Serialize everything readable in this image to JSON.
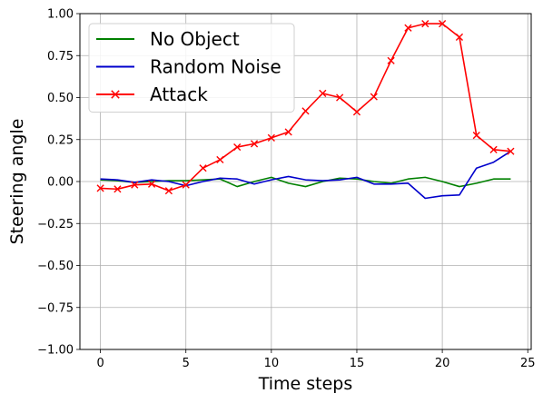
{
  "chart_data": {
    "type": "line",
    "xlabel": "Time steps",
    "ylabel": "Steering angle",
    "xlim": [
      -1.2,
      25.2
    ],
    "ylim": [
      -1.0,
      1.0
    ],
    "xticks": [
      0,
      5,
      10,
      15,
      20,
      25
    ],
    "yticks": [
      -1.0,
      -0.75,
      -0.5,
      -0.25,
      0.0,
      0.25,
      0.5,
      0.75,
      1.0
    ],
    "xtick_labels": [
      "0",
      "5",
      "10",
      "15",
      "20",
      "25"
    ],
    "ytick_labels": [
      "−1.00",
      "−0.75",
      "−0.50",
      "−0.25",
      "0.00",
      "0.25",
      "0.50",
      "0.75",
      "1.00"
    ],
    "grid": true,
    "legend_position": "top-left",
    "x": [
      0,
      1,
      2,
      3,
      4,
      5,
      6,
      7,
      8,
      9,
      10,
      11,
      12,
      13,
      14,
      15,
      16,
      17,
      18,
      19,
      20,
      21,
      22,
      23,
      24
    ],
    "series": [
      {
        "name": "No Object",
        "color": "#008000",
        "marker": "none",
        "values": [
          0.01,
          0.005,
          -0.005,
          0.0,
          0.005,
          0.005,
          0.01,
          0.015,
          -0.03,
          0.0,
          0.025,
          -0.01,
          -0.03,
          0.0,
          0.02,
          0.015,
          0.0,
          -0.01,
          0.015,
          0.025,
          0.0,
          -0.03,
          -0.01,
          0.015,
          0.015
        ]
      },
      {
        "name": "Random Noise",
        "color": "#0000cc",
        "marker": "none",
        "values": [
          0.015,
          0.01,
          -0.005,
          0.01,
          0.0,
          -0.025,
          0.0,
          0.02,
          0.015,
          -0.015,
          0.01,
          0.03,
          0.01,
          0.005,
          0.01,
          0.025,
          -0.015,
          -0.015,
          -0.01,
          -0.1,
          -0.085,
          -0.08,
          0.08,
          0.115,
          0.18
        ]
      },
      {
        "name": "Attack",
        "color": "#ff0000",
        "marker": "x",
        "values": [
          -0.04,
          -0.045,
          -0.02,
          -0.015,
          -0.055,
          -0.02,
          0.08,
          0.13,
          0.205,
          0.225,
          0.26,
          0.295,
          0.42,
          0.525,
          0.5,
          0.415,
          0.505,
          0.72,
          0.915,
          0.94,
          0.94,
          0.86,
          0.275,
          0.19,
          0.18
        ]
      }
    ]
  }
}
